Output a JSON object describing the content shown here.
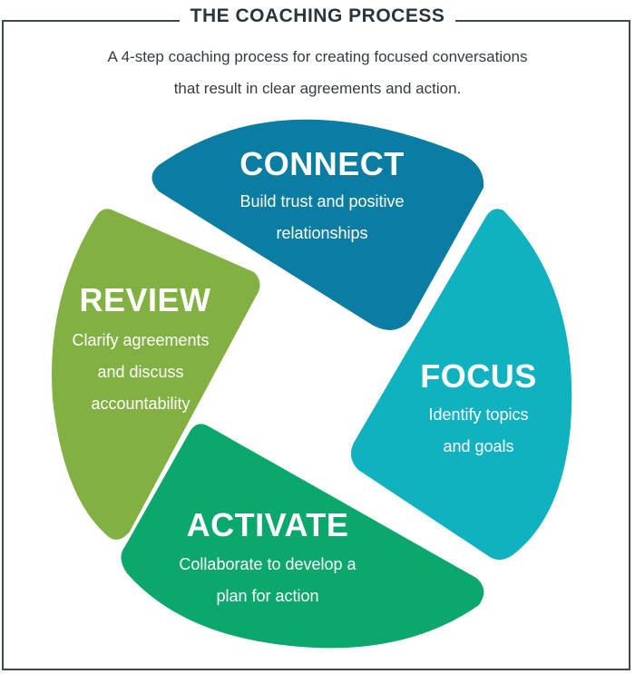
{
  "title": "THE COACHING PROCESS",
  "subtitle_line1": "A 4-step coaching process for creating focused conversations",
  "subtitle_line2": "that result in clear agreements and action.",
  "steps": [
    {
      "name": "CONNECT",
      "line1": "Build trust and positive",
      "line2": "relationships",
      "color": "#0b7da3"
    },
    {
      "name": "FOCUS",
      "line1": "Identify topics",
      "line2": "and goals",
      "color": "#10b1c0"
    },
    {
      "name": "ACTIVATE",
      "line1": "Collaborate to develop a",
      "line2": "plan for action",
      "color": "#0ba76d"
    },
    {
      "name": "REVIEW",
      "line1": "Clarify agreements",
      "line2": "and discuss",
      "line3": "accountability",
      "color": "#82b043"
    }
  ]
}
